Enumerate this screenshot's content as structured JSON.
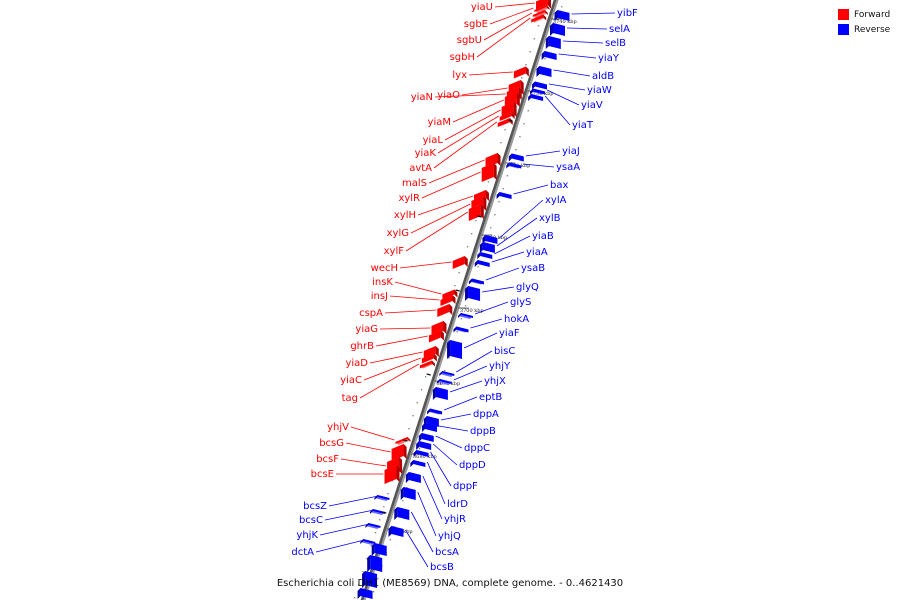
{
  "title": "Escherichia coli DH1 (ME8569) DNA, complete genome. - 0..4621430",
  "legend": [
    {
      "label": "Forward",
      "color": "#ff0000"
    },
    {
      "label": "Reverse",
      "color": "#0000ff"
    }
  ],
  "axis_ticks": [
    "3670 kbp",
    "3680 kbp",
    "3690 kbp",
    "3700 kbp",
    "3710 kbp",
    "3720 kbp",
    "3730 kbp",
    "3740 kbp"
  ],
  "forward_genes": [
    "yiaU",
    "sgbE",
    "sgbU",
    "sgbH",
    "lyx",
    "yiaO",
    "yiaN",
    "yiaM",
    "yiaL",
    "yiaK",
    "avtA",
    "malS",
    "xylR",
    "xylH",
    "xylG",
    "xylF",
    "wecH",
    "insK",
    "insJ",
    "cspA",
    "yiaG",
    "ghrB",
    "yiaD",
    "yiaC",
    "tag",
    "yhjV",
    "bcsG",
    "bcsF",
    "bcsE"
  ],
  "reverse_genes": [
    "yibF",
    "selA",
    "selB",
    "yiaY",
    "aldB",
    "yiaW",
    "yiaV",
    "yiaT",
    "yiaJ",
    "ysaA",
    "bax",
    "xylA",
    "xylB",
    "yiaB",
    "yiaA",
    "ysaB",
    "glyQ",
    "glyS",
    "hokA",
    "yiaF",
    "bisC",
    "yhjY",
    "yhjX",
    "eptB",
    "dppA",
    "dppB",
    "dppC",
    "dppD",
    "dppF",
    "ldrD",
    "yhjR",
    "yhjQ",
    "bcsA",
    "bcsB",
    "bcsZ",
    "bcsC",
    "yhjK",
    "dctA"
  ]
}
